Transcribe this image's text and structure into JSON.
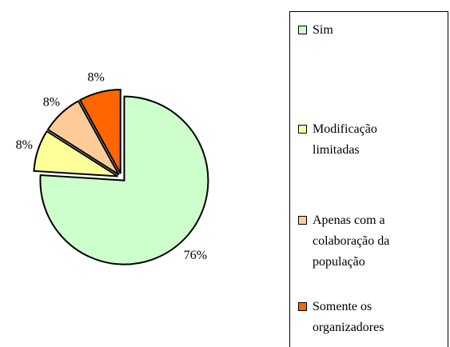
{
  "chart_data": {
    "type": "pie",
    "categories": [
      "Sim",
      "Modificação limitadas",
      "Apenas com a colaboração da população",
      "Somente os organizadores"
    ],
    "values": [
      76,
      8,
      8,
      8
    ],
    "value_labels": [
      "76%",
      "8%",
      "8%",
      "8%"
    ],
    "colors": [
      "#ccffcc",
      "#ffff99",
      "#ffcc99",
      "#ff6600"
    ]
  }
}
